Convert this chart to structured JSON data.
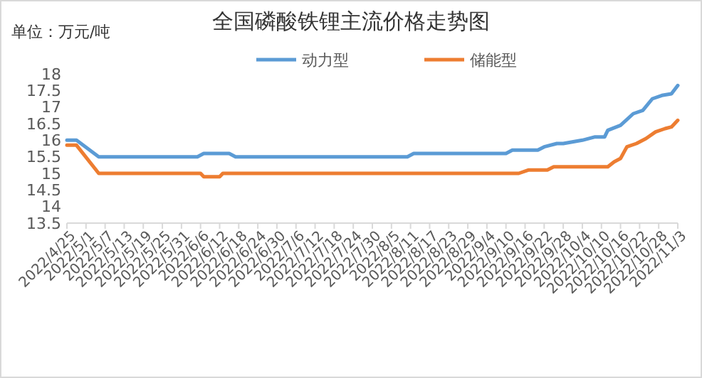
{
  "chart_data": {
    "type": "line",
    "title": "全国磷酸铁锂主流价格走势图",
    "annotations": [
      "单位：万元/吨"
    ],
    "legend": "top",
    "grid": false,
    "marker": "none",
    "line_style": "solid",
    "ylim": [
      13.5,
      18
    ],
    "yticks": [
      13.5,
      14,
      14.5,
      15,
      15.5,
      16,
      16.5,
      17,
      17.5,
      18
    ],
    "xlim": [
      "2022-04-25",
      "2022-11-03"
    ],
    "xticks": [
      {
        "value": "2022-04-25",
        "label": "2022/4/25"
      },
      {
        "value": "2022-05-01",
        "label": "2022/5/1"
      },
      {
        "value": "2022-05-07",
        "label": "2022/5/7"
      },
      {
        "value": "2022-05-13",
        "label": "2022/5/13"
      },
      {
        "value": "2022-05-19",
        "label": "2022/5/19"
      },
      {
        "value": "2022-05-25",
        "label": "2022/5/25"
      },
      {
        "value": "2022-05-31",
        "label": "2022/5/31"
      },
      {
        "value": "2022-06-06",
        "label": "2022/6/6"
      },
      {
        "value": "2022-06-12",
        "label": "2022/6/12"
      },
      {
        "value": "2022-06-18",
        "label": "2022/6/18"
      },
      {
        "value": "2022-06-24",
        "label": "2022/6/24"
      },
      {
        "value": "2022-06-30",
        "label": "2022/6/30"
      },
      {
        "value": "2022-07-06",
        "label": "2022/7/6"
      },
      {
        "value": "2022-07-12",
        "label": "2022/7/12"
      },
      {
        "value": "2022-07-18",
        "label": "2022/7/18"
      },
      {
        "value": "2022-07-24",
        "label": "2022/7/24"
      },
      {
        "value": "2022-07-30",
        "label": "2022/7/30"
      },
      {
        "value": "2022-08-05",
        "label": "2022/8/5"
      },
      {
        "value": "2022-08-11",
        "label": "2022/8/11"
      },
      {
        "value": "2022-08-17",
        "label": "2022/8/17"
      },
      {
        "value": "2022-08-23",
        "label": "2022/8/23"
      },
      {
        "value": "2022-08-29",
        "label": "2022/8/29"
      },
      {
        "value": "2022-09-04",
        "label": "2022/9/4"
      },
      {
        "value": "2022-09-10",
        "label": "2022/9/10"
      },
      {
        "value": "2022-09-16",
        "label": "2022/9/16"
      },
      {
        "value": "2022-09-22",
        "label": "2022/9/22"
      },
      {
        "value": "2022-09-28",
        "label": "2022/9/28"
      },
      {
        "value": "2022-10-04",
        "label": "2022/10/4"
      },
      {
        "value": "2022-10-10",
        "label": "2022/10/10"
      },
      {
        "value": "2022-10-16",
        "label": "2022/10/16"
      },
      {
        "value": "2022-10-22",
        "label": "2022/10/22"
      },
      {
        "value": "2022-10-28",
        "label": "2022/10/28"
      },
      {
        "value": "2022-11-03",
        "label": "2022/11/3"
      }
    ],
    "series": [
      {
        "name": "动力型",
        "color": "#5b9bd5",
        "x": [
          "2022-04-25",
          "2022-04-28",
          "2022-05-05",
          "2022-06-05",
          "2022-06-07",
          "2022-06-15",
          "2022-06-17",
          "2022-08-10",
          "2022-08-12",
          "2022-09-10",
          "2022-09-12",
          "2022-09-20",
          "2022-09-22",
          "2022-09-26",
          "2022-09-28",
          "2022-10-04",
          "2022-10-08",
          "2022-10-11",
          "2022-10-12",
          "2022-10-16",
          "2022-10-20",
          "2022-10-23",
          "2022-10-26",
          "2022-10-29",
          "2022-11-01",
          "2022-11-03"
        ],
        "values": [
          16.0,
          16.0,
          15.5,
          15.5,
          15.6,
          15.6,
          15.5,
          15.5,
          15.6,
          15.6,
          15.7,
          15.7,
          15.8,
          15.9,
          15.9,
          16.0,
          16.1,
          16.1,
          16.3,
          16.45,
          16.8,
          16.9,
          17.25,
          17.35,
          17.4,
          17.65
        ]
      },
      {
        "name": "储能型",
        "color": "#ed7d31",
        "x": [
          "2022-04-25",
          "2022-04-28",
          "2022-05-05",
          "2022-06-06",
          "2022-06-07",
          "2022-06-12",
          "2022-06-13",
          "2022-09-14",
          "2022-09-17",
          "2022-09-23",
          "2022-09-25",
          "2022-10-12",
          "2022-10-14",
          "2022-10-16",
          "2022-10-18",
          "2022-10-21",
          "2022-10-24",
          "2022-10-27",
          "2022-10-30",
          "2022-11-01",
          "2022-11-03"
        ],
        "values": [
          15.85,
          15.85,
          15.0,
          15.0,
          14.9,
          14.9,
          15.0,
          15.0,
          15.1,
          15.1,
          15.2,
          15.2,
          15.35,
          15.45,
          15.8,
          15.9,
          16.05,
          16.25,
          16.35,
          16.4,
          16.6
        ]
      }
    ]
  }
}
